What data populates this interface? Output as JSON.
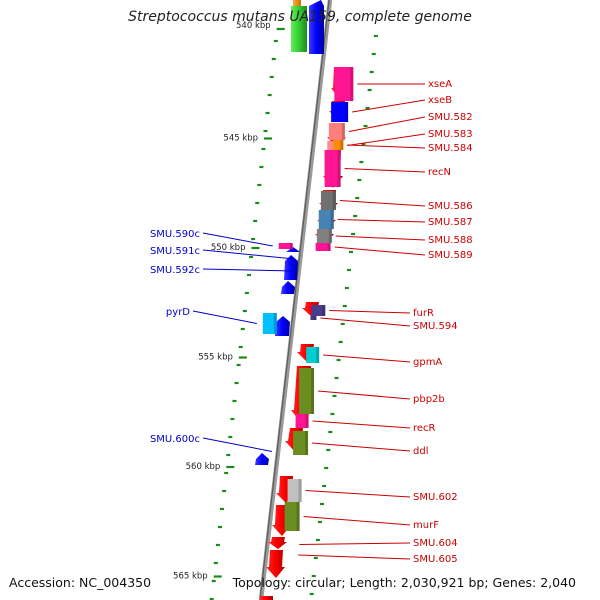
{
  "title": "Streptococcus mutans UA159, complete genome",
  "accession": "Accession: NC_004350",
  "summary": "Topology: circular; Length: 2,030,921 bp; Genes: 2,040",
  "colors": {
    "backbone": "#808080",
    "forward_label": "#cc0000",
    "reverse_label": "#0000cc",
    "tick": "#1a8a1a"
  },
  "kbp_markers": [
    {
      "label": "540 kbp",
      "kbp": 540
    },
    {
      "label": "545 kbp",
      "kbp": 545
    },
    {
      "label": "550 kbp",
      "kbp": 550
    },
    {
      "label": "555 kbp",
      "kbp": 555
    },
    {
      "label": "560 kbp",
      "kbp": 560
    },
    {
      "label": "565 kbp",
      "kbp": 565
    }
  ],
  "forward_genes": [
    {
      "name": "xseA",
      "color": "#ff1493"
    },
    {
      "name": "xseB",
      "color": "#0000ff"
    },
    {
      "name": "SMU.582",
      "color": "#ff7f7f"
    },
    {
      "name": "SMU.583",
      "color": "#ff8c8c"
    },
    {
      "name": "SMU.584",
      "color": "#ff8c00"
    },
    {
      "name": "recN",
      "color": "#ff1493"
    },
    {
      "name": "SMU.586",
      "color": "#707070"
    },
    {
      "name": "SMU.587",
      "color": "#4682b4"
    },
    {
      "name": "SMU.588",
      "color": "#808080"
    },
    {
      "name": "SMU.589",
      "color": "#ff1493"
    },
    {
      "name": "furR",
      "color": "#483d8b"
    },
    {
      "name": "SMU.594",
      "color": "#483d8b"
    },
    {
      "name": "gpmA",
      "color": "#00ced1"
    },
    {
      "name": "pbp2b",
      "color": "#6b8e23"
    },
    {
      "name": "recR",
      "color": "#ff1493"
    },
    {
      "name": "ddl",
      "color": "#6b8e23"
    },
    {
      "name": "SMU.602",
      "color": "#c0c0c0"
    },
    {
      "name": "murF",
      "color": "#6b8e23"
    },
    {
      "name": "SMU.604",
      "color": "#ff0000"
    },
    {
      "name": "SMU.605",
      "color": "#ff0000"
    }
  ],
  "reverse_genes": [
    {
      "name": "SMU.590c",
      "color": "#ff1493"
    },
    {
      "name": "SMU.591c",
      "color": "#0000ff"
    },
    {
      "name": "SMU.592c",
      "color": "#0000ff"
    },
    {
      "name": "pyrD",
      "color": "#00bfff"
    },
    {
      "name": "SMU.600c",
      "color": "#0000ff"
    }
  ]
}
